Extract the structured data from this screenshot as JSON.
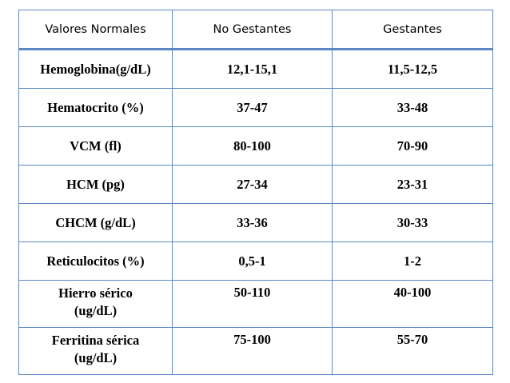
{
  "table": {
    "headers": [
      "Valores Normales",
      "No Gestantes",
      "Gestantes"
    ],
    "rows": [
      {
        "parameter": "Hemoglobina(g/dL)",
        "no_gestantes": "12,1-15,1",
        "gestantes": "11,5-12,5"
      },
      {
        "parameter": "Hematocrito (%)",
        "no_gestantes": "37-47",
        "gestantes": "33-48"
      },
      {
        "parameter": "VCM (fl)",
        "no_gestantes": "80-100",
        "gestantes": "70-90"
      },
      {
        "parameter": "HCM (pg)",
        "no_gestantes": "27-34",
        "gestantes": "23-31"
      },
      {
        "parameter": "CHCM (g/dL)",
        "no_gestantes": "33-36",
        "gestantes": "30-33"
      },
      {
        "parameter": "Reticulocitos (%)",
        "no_gestantes": "0,5-1",
        "gestantes": "1-2"
      },
      {
        "parameter": "Hierro sérico",
        "parameter_line2": "(ug/dL)",
        "no_gestantes": "50-110",
        "gestantes": "40-100"
      },
      {
        "parameter": "Ferritina sérica",
        "parameter_line2": "(ug/dL)",
        "no_gestantes": "75-100",
        "gestantes": "55-70"
      }
    ]
  },
  "colors": {
    "border": "#5b87c5",
    "text": "#000000",
    "background": "#ffffff"
  }
}
